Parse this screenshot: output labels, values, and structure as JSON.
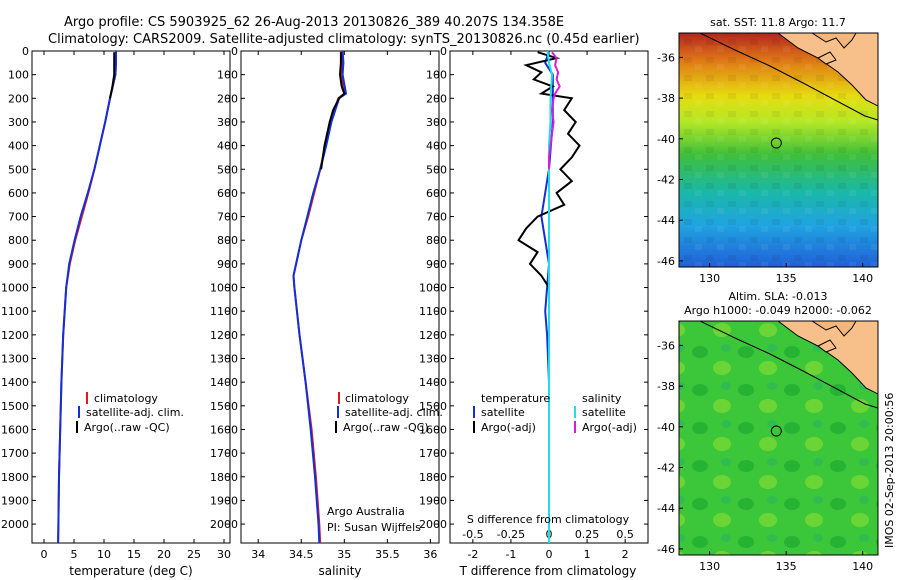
{
  "header": {
    "line1": "Argo profile: CS 5903925_62 26-Aug-2013 20130826_389 40.207S 134.358E",
    "line2": "Climatology: CARS2009. Satellite-adjusted climatology: synTS_20130826.nc (0.45d earlier)"
  },
  "credit": {
    "institution": "Argo Australia",
    "pi": "PI: Susan Wijffels",
    "stamp": "IMOS 02-Sep-2013 20:00:56"
  },
  "colors": {
    "climatology": "#e31a1c",
    "satellite": "#1030d8",
    "argo": "#000000",
    "sat_salinity": "#22dde8",
    "argo_salinity": "#d81ed8"
  },
  "chart_data": [
    {
      "type": "line",
      "name": "temperature-profile",
      "xlabel": "temperature (deg C)",
      "ylabel": "",
      "xlim": [
        -2,
        31
      ],
      "ylim": [
        2080,
        0
      ],
      "xticks": [
        0,
        5,
        10,
        15,
        20,
        25,
        30
      ],
      "yticks": [
        0,
        100,
        200,
        300,
        400,
        500,
        600,
        700,
        800,
        900,
        1000,
        1100,
        1200,
        1300,
        1400,
        1500,
        1600,
        1700,
        1800,
        1900,
        2000
      ],
      "legend": [
        "climatology",
        "satellite-adj. clim.",
        "Argo(..raw -QC)"
      ],
      "series": [
        {
          "name": "climatology",
          "depth": [
            0,
            50,
            100,
            200,
            300,
            400,
            500,
            600,
            700,
            800,
            900,
            1000,
            1200,
            1400,
            1600,
            1800,
            2000,
            2080
          ],
          "values": [
            12.0,
            12.0,
            11.9,
            11.0,
            10.2,
            9.3,
            8.4,
            7.4,
            6.3,
            5.2,
            4.3,
            3.7,
            3.2,
            2.9,
            2.7,
            2.5,
            2.4,
            2.35
          ]
        },
        {
          "name": "satellite-adj. clim.",
          "depth": [
            0,
            50,
            100,
            200,
            300,
            400,
            500,
            600,
            700,
            800,
            900,
            1000,
            1200,
            1400,
            1600,
            1800,
            2000,
            2080
          ],
          "values": [
            12.0,
            12.0,
            11.9,
            11.0,
            10.2,
            9.3,
            8.4,
            7.3,
            6.1,
            5.1,
            4.2,
            3.7,
            3.2,
            2.9,
            2.7,
            2.5,
            2.4,
            2.35
          ]
        },
        {
          "name": "Argo(..raw -QC)",
          "depth": [
            5,
            50,
            100,
            150,
            200
          ],
          "values": [
            11.7,
            11.7,
            11.7,
            11.4,
            11.0
          ]
        }
      ]
    },
    {
      "type": "line",
      "name": "salinity-profile",
      "xlabel": "salinity",
      "xlim": [
        33.8,
        36.1
      ],
      "ylim": [
        2080,
        0
      ],
      "xticks": [
        34,
        34.5,
        35,
        35.5,
        36
      ],
      "legend": [
        "climatology",
        "satellite-adj. clim.",
        "Argo(..raw -QC)"
      ],
      "series": [
        {
          "name": "climatology",
          "depth": [
            0,
            50,
            100,
            180,
            200,
            300,
            400,
            500,
            600,
            700,
            800,
            900,
            950,
            1000,
            1200,
            1400,
            1600,
            1800,
            2000,
            2080
          ],
          "values": [
            34.96,
            34.97,
            34.96,
            35.0,
            34.93,
            34.84,
            34.78,
            34.72,
            34.65,
            34.58,
            34.5,
            34.44,
            34.41,
            34.42,
            34.48,
            34.55,
            34.62,
            34.67,
            34.71,
            34.72
          ]
        },
        {
          "name": "satellite-adj. clim.",
          "depth": [
            0,
            50,
            100,
            180,
            200,
            300,
            400,
            500,
            600,
            700,
            800,
            900,
            950,
            1000,
            1200,
            1400,
            1600,
            1800,
            2000,
            2080
          ],
          "values": [
            34.98,
            34.99,
            34.98,
            35.02,
            34.94,
            34.85,
            34.79,
            34.72,
            34.64,
            34.57,
            34.5,
            34.44,
            34.41,
            34.42,
            34.48,
            34.55,
            34.61,
            34.66,
            34.7,
            34.71
          ]
        },
        {
          "name": "Argo(..raw -QC)",
          "depth": [
            5,
            50,
            100,
            150,
            180,
            200,
            250,
            300,
            350,
            400,
            450,
            500
          ],
          "values": [
            34.96,
            34.96,
            34.95,
            34.97,
            35.0,
            34.94,
            34.87,
            34.83,
            34.8,
            34.77,
            34.75,
            34.73
          ]
        }
      ]
    },
    {
      "type": "line",
      "name": "difference-profile",
      "xlabel": "T difference from climatology",
      "xlabel2": "S difference from climatology",
      "xlim": [
        -2.6,
        2.6
      ],
      "ylim": [
        2080,
        0
      ],
      "xticks": [
        -2,
        -1,
        0,
        1,
        2
      ],
      "xticks2": [
        -0.5,
        -0.25,
        0,
        0.25,
        0.5
      ],
      "legend_left_title": "temperature",
      "legend_right_title": "salinity",
      "legend": [
        "satellite",
        "Argo(-adj)",
        "satellite",
        "Argo(-adj)"
      ],
      "series": [
        {
          "name": "T satellite",
          "depth": [
            0,
            50,
            100,
            200,
            300,
            400,
            500,
            600,
            700,
            800,
            900,
            1000,
            1100,
            1200,
            1400,
            1600,
            1800,
            2000,
            2080
          ],
          "values": [
            0.0,
            -0.1,
            0.1,
            0.1,
            0.1,
            0.05,
            0.0,
            -0.1,
            -0.2,
            -0.1,
            0.0,
            -0.05,
            -0.1,
            -0.05,
            0.0,
            0.0,
            0.0,
            0.0,
            0.0
          ]
        },
        {
          "name": "T Argo(-adj)",
          "depth": [
            5,
            30,
            60,
            90,
            120,
            150,
            180,
            200,
            250,
            300,
            350,
            400,
            450,
            500,
            550,
            600,
            650,
            700,
            750,
            800,
            850,
            900,
            950,
            1000
          ],
          "values": [
            -0.3,
            0.2,
            -0.6,
            -0.2,
            -0.4,
            0.1,
            -0.2,
            0.6,
            0.4,
            0.7,
            0.5,
            0.8,
            0.6,
            0.3,
            0.6,
            0.2,
            0.4,
            -0.3,
            -0.6,
            -0.8,
            -0.3,
            -0.5,
            -0.2,
            0.0
          ]
        },
        {
          "name": "S satellite",
          "depth": [
            0,
            50,
            100,
            200,
            300,
            400,
            500,
            600,
            800,
            1000,
            1200,
            1400,
            1600,
            1800,
            2000,
            2080
          ],
          "values": [
            -0.01,
            0.0,
            0.02,
            0.01,
            0.01,
            0.0,
            0.0,
            0.0,
            0.0,
            0.0,
            0.0,
            0.0,
            0.0,
            0.0,
            0.0,
            0.0
          ]
        },
        {
          "name": "S Argo(-adj)",
          "depth": [
            5,
            30,
            60,
            90,
            120,
            150,
            180,
            200,
            250,
            300,
            350,
            400,
            450,
            500
          ],
          "values": [
            0.02,
            0.05,
            0.04,
            0.06,
            0.05,
            0.07,
            0.04,
            0.03,
            0.02,
            0.03,
            0.02,
            0.01,
            0.0,
            0.0
          ]
        }
      ]
    },
    {
      "type": "heatmap",
      "name": "sst-map",
      "title": "sat. SST: 11.8 Argo: 11.7",
      "xlim": [
        128,
        141
      ],
      "ylim": [
        -46.3,
        -34.8
      ],
      "xticks": [
        130,
        135,
        140
      ],
      "yticks": [
        -36,
        -38,
        -40,
        -42,
        -44,
        -46
      ],
      "argo_position": {
        "lon": 134.358,
        "lat": -40.207
      }
    },
    {
      "type": "heatmap",
      "name": "sla-map",
      "title": "Altim. SLA: -0.013",
      "subtitle": "Argo h1000: -0.049 h2000: -0.062",
      "xlim": [
        128,
        141
      ],
      "ylim": [
        -46.3,
        -34.8
      ],
      "xticks": [
        130,
        135,
        140
      ],
      "yticks": [
        -36,
        -38,
        -40,
        -42,
        -44,
        -46
      ],
      "argo_position": {
        "lon": 134.358,
        "lat": -40.207
      }
    }
  ]
}
